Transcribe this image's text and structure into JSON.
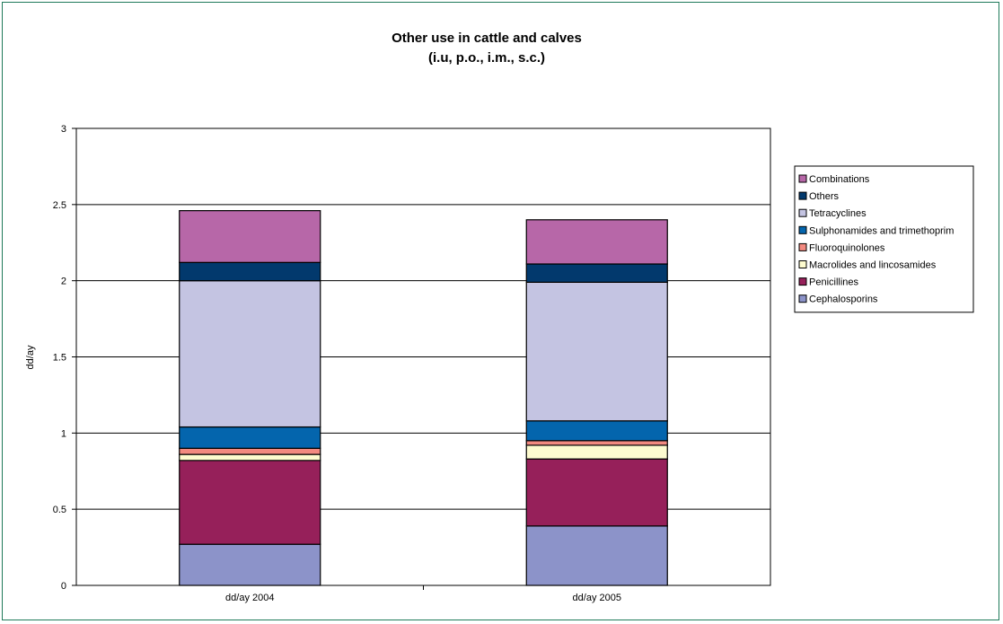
{
  "chart_data": {
    "type": "bar",
    "stacked": true,
    "title": "Other use in cattle and calves",
    "subtitle": "(i.u, p.o., i.m., s.c.)",
    "ylabel": "dd/ay",
    "xlabel": "",
    "ylim": [
      0,
      3
    ],
    "yticks": [
      "0",
      "0.5",
      "1",
      "1.5",
      "2",
      "2.5",
      "3"
    ],
    "grid": true,
    "legend_position": "right",
    "categories": [
      "dd/ay 2004",
      "dd/ay 2005"
    ],
    "series": [
      {
        "name": "Cephalosporins",
        "color": "#8c93c9",
        "values": [
          0.27,
          0.39
        ]
      },
      {
        "name": "Penicillines",
        "color": "#96205a",
        "values": [
          0.55,
          0.44
        ]
      },
      {
        "name": "Macrolides and lincosamides",
        "color": "#fdfbcf",
        "values": [
          0.04,
          0.09
        ]
      },
      {
        "name": "Fluoroquinolones",
        "color": "#f28980",
        "values": [
          0.04,
          0.03
        ]
      },
      {
        "name": "Sulphonamides and trimethoprim",
        "color": "#0465ad",
        "values": [
          0.14,
          0.13
        ]
      },
      {
        "name": "Tetracyclines",
        "color": "#c4c4e2",
        "values": [
          0.96,
          0.91
        ]
      },
      {
        "name": "Others",
        "color": "#02396d",
        "values": [
          0.12,
          0.12
        ]
      },
      {
        "name": "Combinations",
        "color": "#b767a8",
        "values": [
          0.34,
          0.29
        ]
      }
    ]
  }
}
